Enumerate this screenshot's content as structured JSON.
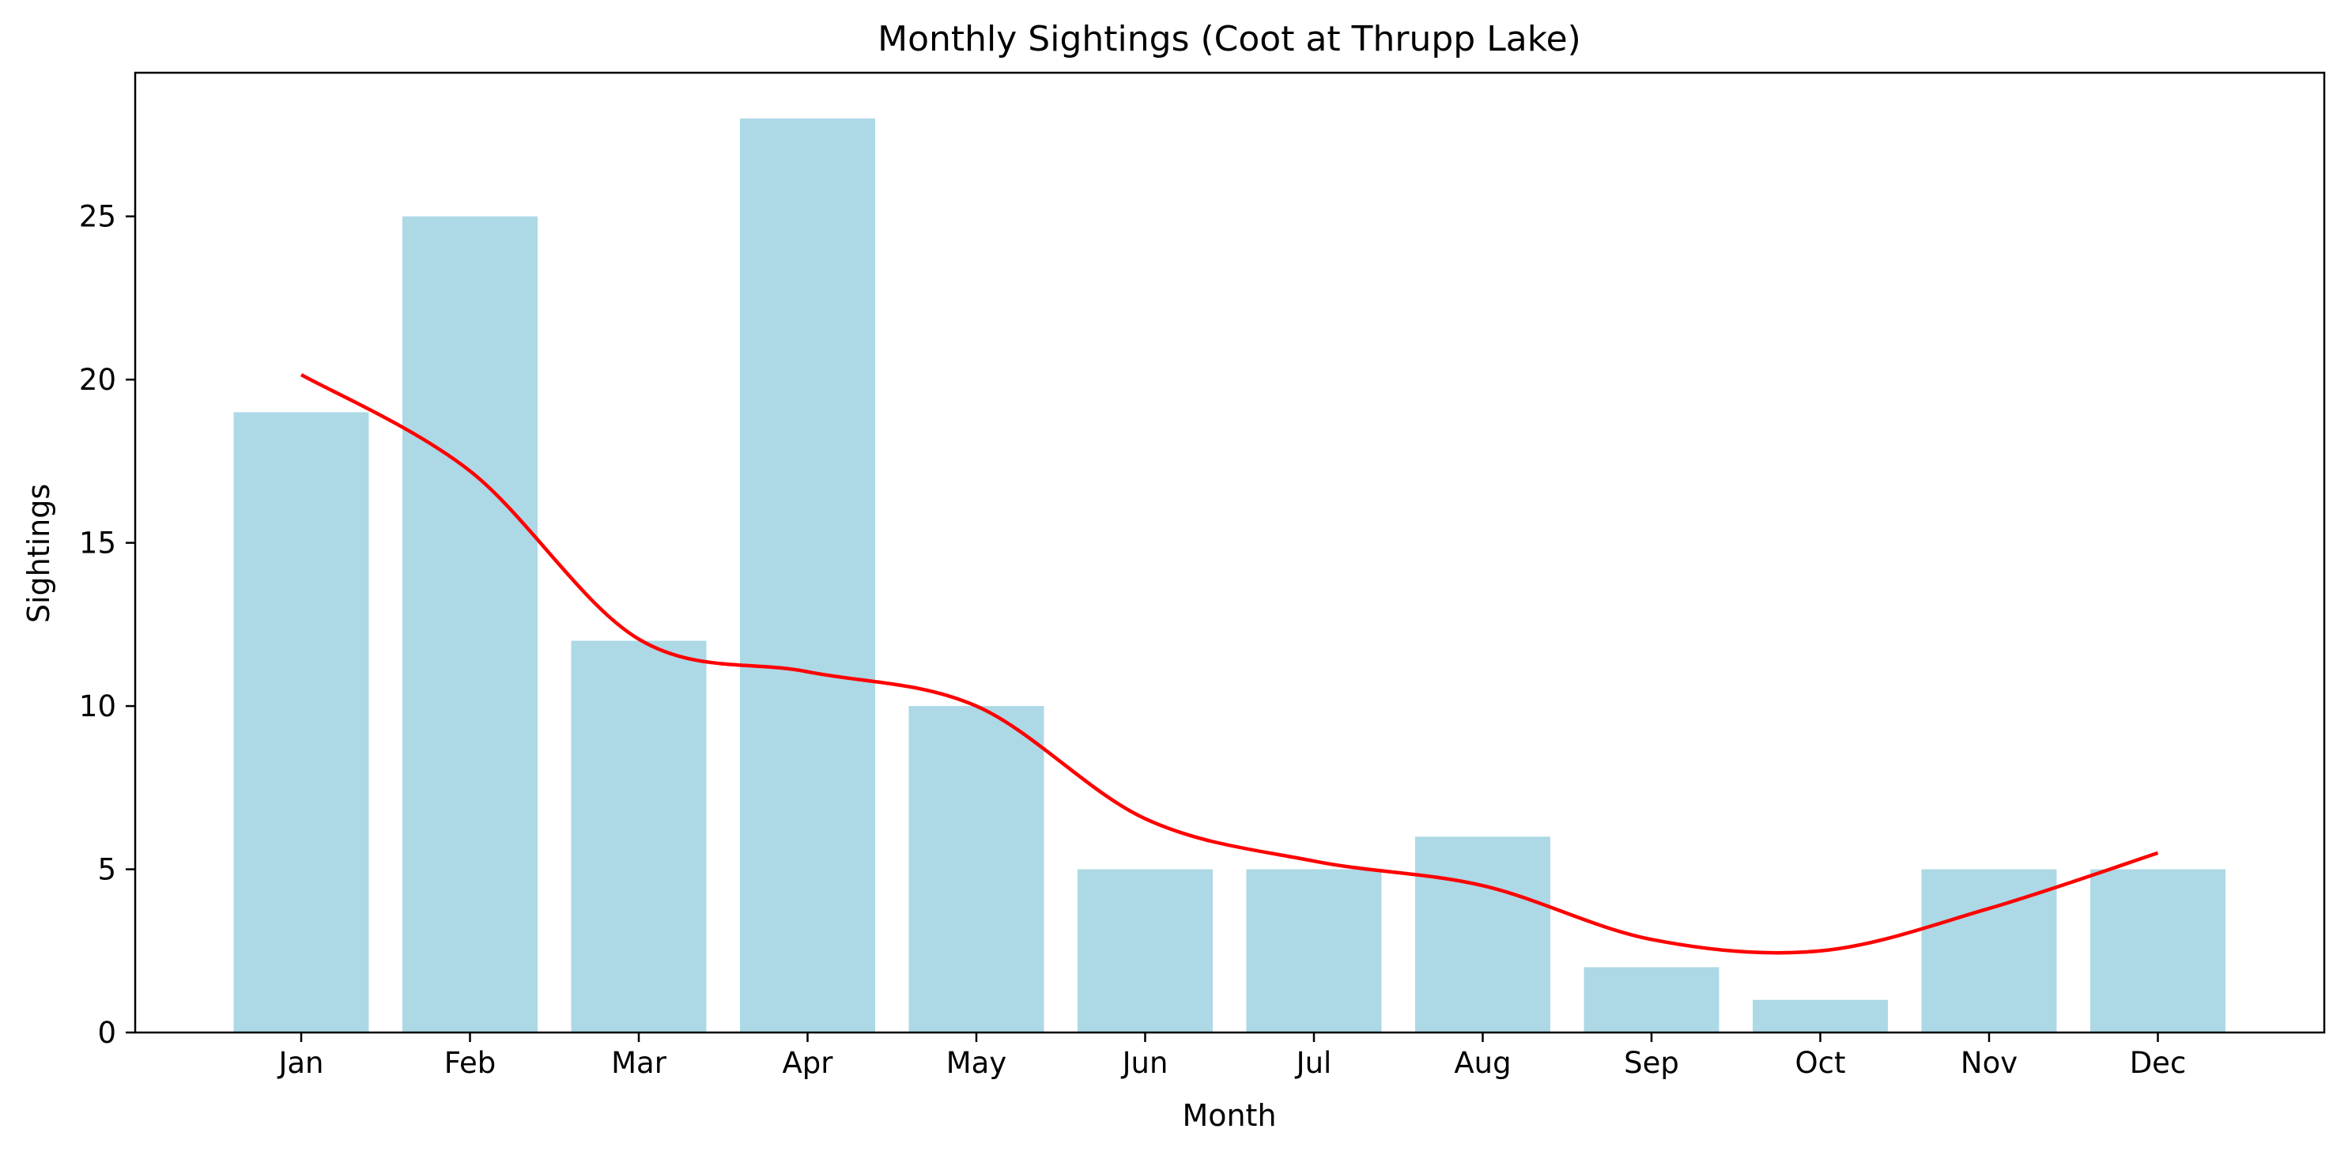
{
  "chart_data": {
    "type": "bar",
    "title": "Monthly Sightings (Coot at Thrupp Lake)",
    "xlabel": "Month",
    "ylabel": "Sightings",
    "categories": [
      "Jan",
      "Feb",
      "Mar",
      "Apr",
      "May",
      "Jun",
      "Jul",
      "Aug",
      "Sep",
      "Oct",
      "Nov",
      "Dec"
    ],
    "series": [
      {
        "type": "bar",
        "values": [
          19,
          25,
          12,
          28,
          10,
          5,
          5,
          6,
          2,
          1,
          5,
          5
        ]
      },
      {
        "type": "line",
        "values": [
          20.15,
          17.2,
          12.05,
          11.05,
          10.0,
          6.55,
          5.25,
          4.5,
          2.85,
          2.5,
          3.8,
          5.5
        ]
      }
    ],
    "ylim": [
      0,
      29.4
    ],
    "yticks": [
      0,
      5,
      10,
      15,
      20,
      25
    ],
    "grid": false,
    "colors": {
      "bar": "#add8e6",
      "line": "#ff0000"
    }
  }
}
